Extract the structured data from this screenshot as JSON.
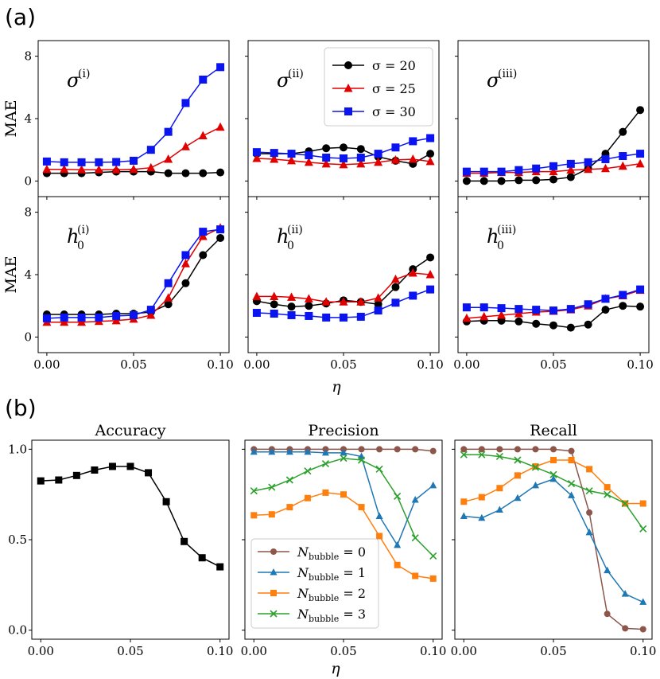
{
  "figure": {
    "panel_a_label": "(a)",
    "panel_b_label": "(b)",
    "shared_xlabel": "η"
  },
  "colors": {
    "sigma20": "#000000",
    "sigma25": "#e00000",
    "sigma30": "#0a14f0",
    "nb0": "#8c564b",
    "nb1": "#1f77b4",
    "nb2": "#ff7f0e",
    "nb3": "#2ca02c",
    "accuracy": "#000000"
  },
  "chart_data": [
    {
      "type": "line",
      "panel": "a",
      "grid": "3x2",
      "x": [
        0.0,
        0.01,
        0.02,
        0.03,
        0.04,
        0.05,
        0.06,
        0.07,
        0.08,
        0.09,
        0.1
      ],
      "xlim": [
        -0.005,
        0.105
      ],
      "xticks": [
        "0.00",
        "0.05",
        "0.10"
      ],
      "ylim": [
        -1,
        9
      ],
      "yticks": [
        "0",
        "4",
        "8"
      ],
      "ylabel": "MAE",
      "xlabel": "η",
      "legend": {
        "placement": "top-right of middle-top subplot",
        "entries": [
          "σ = 20",
          "σ = 25",
          "σ = 30"
        ]
      },
      "subplots": [
        {
          "label_base": "σ",
          "label_sup": "(i)",
          "label_sub": "",
          "series": [
            {
              "name": "σ = 20",
              "marker": "circle",
              "values": [
                0.5,
                0.5,
                0.5,
                0.55,
                0.6,
                0.6,
                0.6,
                0.5,
                0.5,
                0.5,
                0.55
              ]
            },
            {
              "name": "σ = 25",
              "marker": "triangle",
              "values": [
                0.75,
                0.75,
                0.72,
                0.72,
                0.72,
                0.75,
                0.85,
                1.4,
                2.2,
                2.9,
                3.45
              ]
            },
            {
              "name": "σ = 30",
              "marker": "square",
              "values": [
                1.25,
                1.2,
                1.2,
                1.2,
                1.22,
                1.3,
                2.0,
                3.15,
                5.0,
                6.5,
                7.3
              ]
            }
          ]
        },
        {
          "label_base": "σ",
          "label_sup": "(ii)",
          "label_sub": "",
          "series": [
            {
              "name": "σ = 20",
              "marker": "circle",
              "values": [
                1.75,
                1.75,
                1.75,
                1.9,
                2.1,
                2.15,
                2.05,
                1.55,
                1.3,
                1.1,
                1.75
              ]
            },
            {
              "name": "σ = 25",
              "marker": "triangle",
              "values": [
                1.45,
                1.4,
                1.3,
                1.2,
                1.1,
                1.05,
                1.1,
                1.2,
                1.35,
                1.4,
                1.25
              ]
            },
            {
              "name": "σ = 30",
              "marker": "square",
              "values": [
                1.85,
                1.8,
                1.75,
                1.65,
                1.5,
                1.45,
                1.5,
                1.75,
                2.15,
                2.55,
                2.75
              ]
            }
          ]
        },
        {
          "label_base": "σ",
          "label_sup": "(iii)",
          "label_sub": "",
          "series": [
            {
              "name": "σ = 20",
              "marker": "circle",
              "values": [
                0.0,
                0.0,
                0.0,
                0.05,
                0.05,
                0.1,
                0.25,
                0.8,
                1.75,
                3.15,
                4.55
              ]
            },
            {
              "name": "σ = 25",
              "marker": "triangle",
              "values": [
                0.5,
                0.5,
                0.55,
                0.55,
                0.6,
                0.6,
                0.7,
                0.75,
                0.8,
                0.95,
                1.1
              ]
            },
            {
              "name": "σ = 30",
              "marker": "square",
              "values": [
                0.6,
                0.6,
                0.6,
                0.7,
                0.8,
                0.95,
                1.1,
                1.2,
                1.4,
                1.6,
                1.75
              ]
            }
          ]
        },
        {
          "label_base": "h",
          "label_sup": "(i)",
          "label_sub": "0",
          "series": [
            {
              "name": "σ = 20",
              "marker": "circle",
              "values": [
                1.45,
                1.45,
                1.45,
                1.45,
                1.5,
                1.5,
                1.6,
                2.1,
                3.45,
                5.25,
                6.35
              ]
            },
            {
              "name": "σ = 25",
              "marker": "triangle",
              "values": [
                0.95,
                0.95,
                0.95,
                1.0,
                1.05,
                1.15,
                1.4,
                2.5,
                4.7,
                6.45,
                7.0
              ]
            },
            {
              "name": "σ = 30",
              "marker": "square",
              "values": [
                1.2,
                1.25,
                1.25,
                1.25,
                1.35,
                1.4,
                1.75,
                3.45,
                5.25,
                6.75,
                6.9
              ]
            }
          ]
        },
        {
          "label_base": "h",
          "label_sup": "(ii)",
          "label_sub": "0",
          "series": [
            {
              "name": "σ = 20",
              "marker": "circle",
              "values": [
                2.3,
                2.1,
                1.95,
                2.0,
                2.15,
                2.35,
                2.25,
                2.1,
                3.2,
                4.35,
                5.1
              ]
            },
            {
              "name": "σ = 25",
              "marker": "triangle",
              "values": [
                2.6,
                2.6,
                2.55,
                2.45,
                2.25,
                2.25,
                2.25,
                2.5,
                3.7,
                4.1,
                4.0
              ]
            },
            {
              "name": "σ = 30",
              "marker": "square",
              "values": [
                1.55,
                1.5,
                1.4,
                1.35,
                1.25,
                1.25,
                1.3,
                1.7,
                2.2,
                2.65,
                3.05
              ]
            }
          ]
        },
        {
          "label_base": "h",
          "label_sup": "(iii)",
          "label_sub": "0",
          "series": [
            {
              "name": "σ = 20",
              "marker": "circle",
              "values": [
                1.0,
                1.05,
                1.05,
                1.0,
                0.85,
                0.75,
                0.6,
                0.8,
                1.75,
                2.0,
                1.95
              ]
            },
            {
              "name": "σ = 25",
              "marker": "triangle",
              "values": [
                1.2,
                1.3,
                1.4,
                1.5,
                1.6,
                1.65,
                1.75,
                2.0,
                2.45,
                2.65,
                3.0
              ]
            },
            {
              "name": "σ = 30",
              "marker": "square",
              "values": [
                1.9,
                1.9,
                1.85,
                1.8,
                1.75,
                1.7,
                1.8,
                2.1,
                2.45,
                2.7,
                3.05
              ]
            }
          ]
        }
      ]
    },
    {
      "type": "line",
      "panel": "b",
      "x": [
        0.0,
        0.01,
        0.02,
        0.03,
        0.04,
        0.05,
        0.06,
        0.07,
        0.08,
        0.09,
        0.1
      ],
      "xlim": [
        -0.005,
        0.105
      ],
      "xticks": [
        "0.00",
        "0.05",
        "0.10"
      ],
      "ylim": [
        -0.05,
        1.05
      ],
      "yticks": [
        "0.0",
        "0.5",
        "1.0"
      ],
      "xlabel": "η",
      "legend": {
        "placement": "lower-left of Precision subplot",
        "entries": [
          "N_bubble = 0",
          "N_bubble = 1",
          "N_bubble = 2",
          "N_bubble = 3"
        ]
      },
      "subplots": [
        {
          "title": "Accuracy",
          "series": [
            {
              "name": "Accuracy",
              "marker": "square",
              "values": [
                0.825,
                0.83,
                0.855,
                0.885,
                0.905,
                0.905,
                0.87,
                0.71,
                0.49,
                0.4,
                0.35
              ]
            }
          ]
        },
        {
          "title": "Precision",
          "series": [
            {
              "name": "N_bubble = 0",
              "marker": "circle",
              "values": [
                1.0,
                1.0,
                1.0,
                1.0,
                1.0,
                1.0,
                1.0,
                1.0,
                1.0,
                1.0,
                0.99
              ]
            },
            {
              "name": "N_bubble = 1",
              "marker": "triangle",
              "values": [
                0.985,
                0.985,
                0.985,
                0.985,
                0.98,
                0.98,
                0.96,
                0.63,
                0.47,
                0.72,
                0.8
              ]
            },
            {
              "name": "N_bubble = 2",
              "marker": "square",
              "values": [
                0.635,
                0.64,
                0.68,
                0.73,
                0.76,
                0.75,
                0.68,
                0.52,
                0.36,
                0.3,
                0.285
              ]
            },
            {
              "name": "N_bubble = 3",
              "marker": "x",
              "values": [
                0.77,
                0.79,
                0.83,
                0.88,
                0.92,
                0.95,
                0.94,
                0.89,
                0.74,
                0.51,
                0.41
              ]
            }
          ]
        },
        {
          "title": "Recall",
          "series": [
            {
              "name": "N_bubble = 0",
              "marker": "circle",
              "values": [
                1.0,
                1.0,
                1.0,
                1.0,
                1.0,
                1.0,
                0.99,
                0.65,
                0.09,
                0.01,
                0.005
              ]
            },
            {
              "name": "N_bubble = 1",
              "marker": "triangle",
              "values": [
                0.63,
                0.62,
                0.665,
                0.73,
                0.8,
                0.835,
                0.745,
                0.54,
                0.33,
                0.2,
                0.155
              ]
            },
            {
              "name": "N_bubble = 2",
              "marker": "square",
              "values": [
                0.71,
                0.735,
                0.785,
                0.855,
                0.905,
                0.94,
                0.94,
                0.89,
                0.79,
                0.7,
                0.7
              ]
            },
            {
              "name": "N_bubble = 3",
              "marker": "x",
              "values": [
                0.97,
                0.97,
                0.96,
                0.94,
                0.9,
                0.86,
                0.81,
                0.77,
                0.75,
                0.7,
                0.56
              ]
            }
          ]
        }
      ]
    }
  ]
}
